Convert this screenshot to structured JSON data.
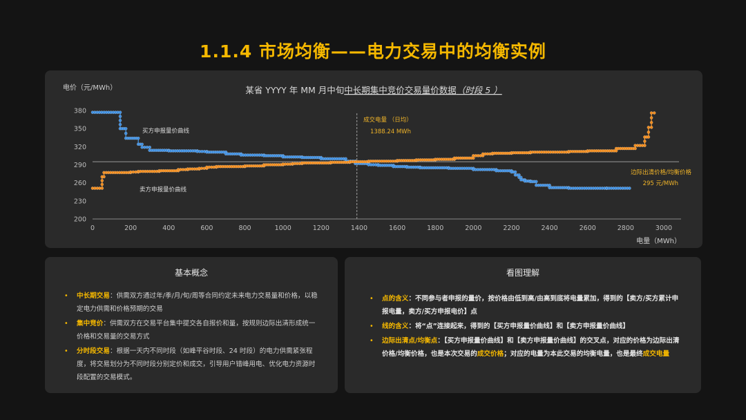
{
  "slide_title": "1.1.4 市场均衡——电力交易中的均衡实例",
  "chart_data": {
    "type": "line",
    "title_prefix": "某省 YYYY 年 MM 月中旬",
    "title_underlined": "中长期集中竞价交易量价数据",
    "title_suffix": "（时段 5 ）",
    "ylabel": "电价（元/MWh）",
    "xlabel": "电量（MWh）",
    "xlim": [
      0,
      3000
    ],
    "ylim": [
      200,
      380
    ],
    "xticks": [
      0,
      200,
      400,
      600,
      800,
      1000,
      1200,
      1400,
      1600,
      1800,
      2000,
      2200,
      2400,
      2600,
      2800,
      3000
    ],
    "yticks": [
      200,
      230,
      260,
      290,
      320,
      350,
      380
    ],
    "grid": false,
    "series": [
      {
        "name": "买方申报量价曲线",
        "color": "#3f8fe0",
        "x": [
          0,
          145,
          145,
          175,
          175,
          240,
          240,
          260,
          260,
          300,
          300,
          400,
          400,
          550,
          550,
          600,
          600,
          700,
          700,
          780,
          780,
          900,
          900,
          1000,
          1000,
          1100,
          1100,
          1200,
          1200,
          1330,
          1330,
          1380,
          1380,
          1450,
          1450,
          1500,
          1500,
          1580,
          1580,
          1650,
          1650,
          1720,
          1720,
          1870,
          1870,
          2000,
          2000,
          2120,
          2120,
          2200,
          2200,
          2220,
          2220,
          2240,
          2240,
          2250,
          2250,
          2270,
          2270,
          2300,
          2300,
          2330,
          2330,
          2400,
          2400,
          2500,
          2500,
          2700,
          2700,
          2820
        ],
        "y": [
          377,
          377,
          350,
          350,
          334,
          334,
          324,
          324,
          319,
          319,
          314,
          314,
          313,
          313,
          312,
          312,
          311,
          311,
          308,
          308,
          306,
          306,
          305,
          305,
          303,
          303,
          302,
          302,
          300,
          300,
          296,
          296,
          292,
          292,
          290,
          290,
          289,
          289,
          287,
          287,
          286,
          286,
          285,
          285,
          284,
          284,
          282,
          282,
          280,
          280,
          278,
          278,
          273,
          273,
          269,
          269,
          265,
          265,
          263,
          263,
          262,
          262,
          256,
          256,
          252,
          252,
          251,
          251,
          251,
          251
        ]
      },
      {
        "name": "卖方申报量价曲线",
        "color": "#f08c1e",
        "x": [
          0,
          50,
          50,
          60,
          60,
          200,
          200,
          240,
          240,
          350,
          350,
          450,
          450,
          500,
          500,
          560,
          560,
          600,
          600,
          650,
          650,
          800,
          800,
          900,
          900,
          1000,
          1000,
          1050,
          1050,
          1100,
          1100,
          1250,
          1250,
          1350,
          1350,
          1450,
          1450,
          1600,
          1600,
          1700,
          1700,
          1800,
          1800,
          1900,
          1900,
          2000,
          2000,
          2050,
          2050,
          2100,
          2100,
          2200,
          2200,
          2300,
          2300,
          2500,
          2500,
          2600,
          2600,
          2750,
          2750,
          2850,
          2850,
          2900,
          2900,
          2920,
          2920,
          2935,
          2935,
          2950
        ],
        "y": [
          251,
          251,
          270,
          270,
          277,
          277,
          278,
          278,
          279,
          279,
          280,
          280,
          282,
          282,
          283,
          283,
          284,
          284,
          286,
          286,
          287,
          287,
          288,
          288,
          290,
          290,
          291,
          291,
          292,
          292,
          293,
          293,
          294,
          294,
          295,
          295,
          296,
          296,
          297,
          297,
          298,
          298,
          299,
          299,
          301,
          301,
          305,
          305,
          308,
          308,
          309,
          309,
          310,
          310,
          311,
          311,
          312,
          312,
          313,
          313,
          317,
          317,
          322,
          322,
          336,
          336,
          352,
          352,
          376,
          376
        ]
      }
    ],
    "clearing_price": 295,
    "clearing_volume": 1388.24,
    "annotations": {
      "buyer_curve_label": "买方申报量价曲线",
      "seller_curve_label": "卖方申报量价曲线",
      "volume_title": "成交电量 （日均）",
      "volume_value": "1388.24 MWh",
      "price_title": "边际出清价格/均衡价格",
      "price_value": "295 元/MWh"
    }
  },
  "concepts": {
    "heading": "基本概念",
    "items": [
      {
        "term": "中长期交易",
        "sep": "：",
        "text": "供需双方通过年/季/月/旬/周等合同约定未来电力交易量和价格，以稳定电力供需和价格预期的交易"
      },
      {
        "term": "集中竞价",
        "sep": "：",
        "text": "供需双方在交易平台集中提交各自报价和量，按规则边际出清形成统一价格和交易量的交易方式"
      },
      {
        "term": "分时段交易",
        "sep": "：",
        "text": "根据一天内不同时段（如峰平谷时段、24 时段）的电力供需紧张程度，将交易划分为不同时段分别定价和成交，引导用户错峰用电、优化电力资源时段配置的交易模式。"
      }
    ]
  },
  "reading": {
    "heading": "看图理解",
    "item1": {
      "term": "点的含义",
      "text": "：不同参与者申报的量价，按价格由低到高/由高到底将电量累加，得到的【卖方/买方累计申报电量，卖方/买方申报电价】点"
    },
    "item2": {
      "term": "线的含义",
      "text": "：将“点”连接起来，得到的【买方申报量价曲线】和【卖方申报量价曲线】"
    },
    "item3": {
      "term": "边际出清点/均衡点",
      "t1": "：【买方申报量价曲线】和【卖方申报量价曲线】的交叉点，对应的价格为边际出清价格/均衡价格，也是本次交易的",
      "k1": "成交价格",
      "t2": "；对应的电量为本此交易的均衡电量，也是最终",
      "k2": "成交电量"
    }
  }
}
